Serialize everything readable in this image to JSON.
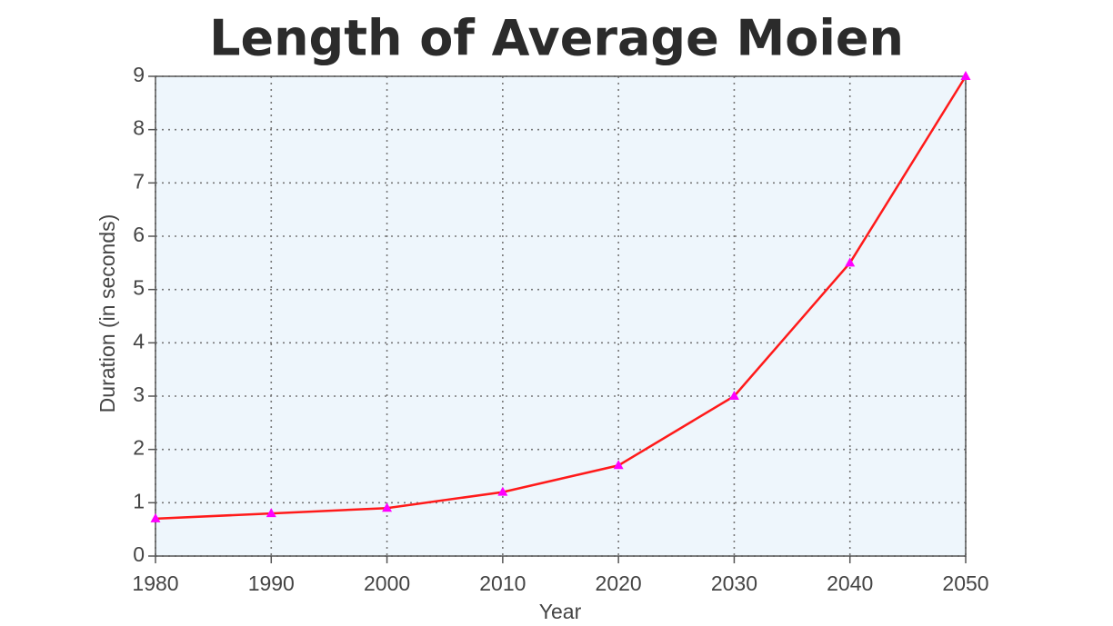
{
  "chart_data": {
    "type": "line",
    "title": "Length of Average Moien",
    "x_label": "Year",
    "y_label": "Duration (in seconds)",
    "x": [
      1980,
      1990,
      2000,
      2010,
      2020,
      2030,
      2040,
      2050
    ],
    "values": [
      0.7,
      0.8,
      0.9,
      1.2,
      1.7,
      3.0,
      5.5,
      9.0
    ],
    "color": "#ff1a1a",
    "marker_color": "#ff00ff",
    "xlim": [
      1980,
      2050
    ],
    "xticks": [
      1980,
      1990,
      2000,
      2010,
      2020,
      2030,
      2040,
      2050
    ],
    "ylim": [
      0,
      9
    ],
    "yticks": [
      0,
      1,
      2,
      3,
      4,
      5,
      6,
      7,
      8,
      9
    ],
    "grid": true
  }
}
